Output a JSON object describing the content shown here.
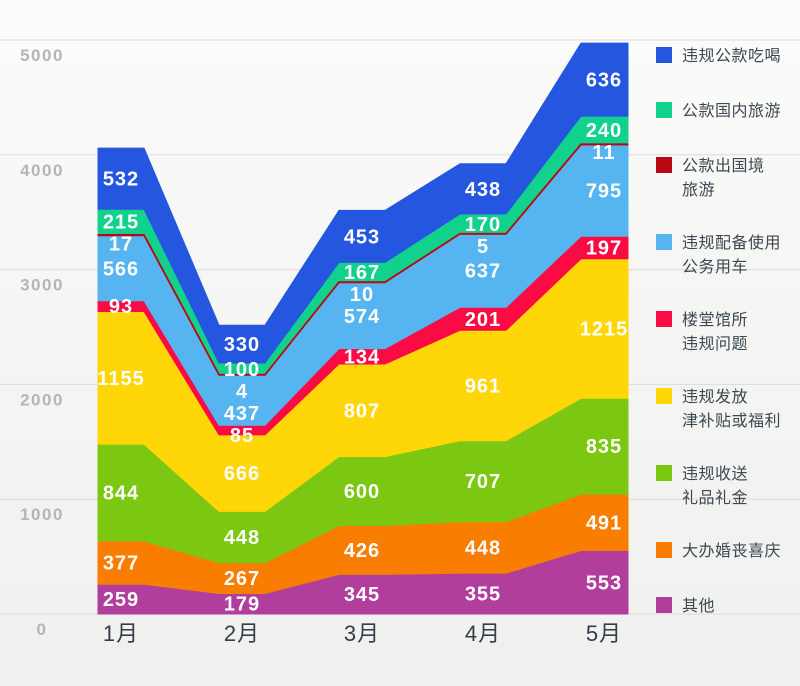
{
  "chart_data": {
    "type": "area",
    "stacked": true,
    "title": "",
    "xlabel": "",
    "ylabel": "",
    "categories": [
      "1月",
      "2月",
      "3月",
      "4月",
      "5月"
    ],
    "series": [
      {
        "name": "违规公款吃喝",
        "color": "#2456E0",
        "values": [
          532,
          330,
          453,
          438,
          636
        ]
      },
      {
        "name": "公款国内旅游",
        "color": "#12D18C",
        "values": [
          215,
          100,
          167,
          170,
          240
        ]
      },
      {
        "name": "公款出国境旅游",
        "color": "#BB0711",
        "values": [
          17,
          4,
          10,
          5,
          11
        ]
      },
      {
        "name": "违规配备使用公务用车",
        "color": "#56B5F1",
        "values": [
          566,
          437,
          574,
          637,
          795
        ]
      },
      {
        "name": "楼堂馆所违规问题",
        "color": "#FB0B43",
        "values": [
          93,
          85,
          134,
          201,
          197
        ]
      },
      {
        "name": "违规发放津补贴或福利",
        "color": "#FFD608",
        "values": [
          1155,
          666,
          807,
          961,
          1215
        ]
      },
      {
        "name": "违规收送礼品礼金",
        "color": "#7CC711",
        "values": [
          844,
          448,
          600,
          707,
          835
        ]
      },
      {
        "name": "大办婚丧喜庆",
        "color": "#F87D00",
        "values": [
          377,
          267,
          426,
          448,
          491
        ]
      },
      {
        "name": "其他",
        "color": "#B13D9D",
        "values": [
          259,
          179,
          345,
          355,
          553
        ]
      }
    ],
    "y_axis": {
      "min": 0,
      "max": 5000,
      "step": 1000,
      "tick_labels": [
        "0",
        "1000",
        "2000",
        "3000",
        "4000",
        "5000"
      ]
    },
    "grid": true,
    "legend_position": "right"
  },
  "legend": {
    "items": [
      {
        "series": 0,
        "lines": [
          "违规公款吃喝"
        ]
      },
      {
        "series": 1,
        "lines": [
          "公款国内旅游"
        ]
      },
      {
        "series": 2,
        "lines": [
          "公款出国境",
          "旅游"
        ]
      },
      {
        "series": 3,
        "lines": [
          "违规配备使用",
          "公务用车"
        ]
      },
      {
        "series": 4,
        "lines": [
          "楼堂馆所",
          "违规问题"
        ]
      },
      {
        "series": 5,
        "lines": [
          "违规发放",
          "津补贴或福利"
        ]
      },
      {
        "series": 6,
        "lines": [
          "违规收送",
          "礼品礼金"
        ]
      },
      {
        "series": 7,
        "lines": [
          "大办婚丧喜庆"
        ]
      },
      {
        "series": 8,
        "lines": [
          "其他"
        ]
      }
    ]
  }
}
